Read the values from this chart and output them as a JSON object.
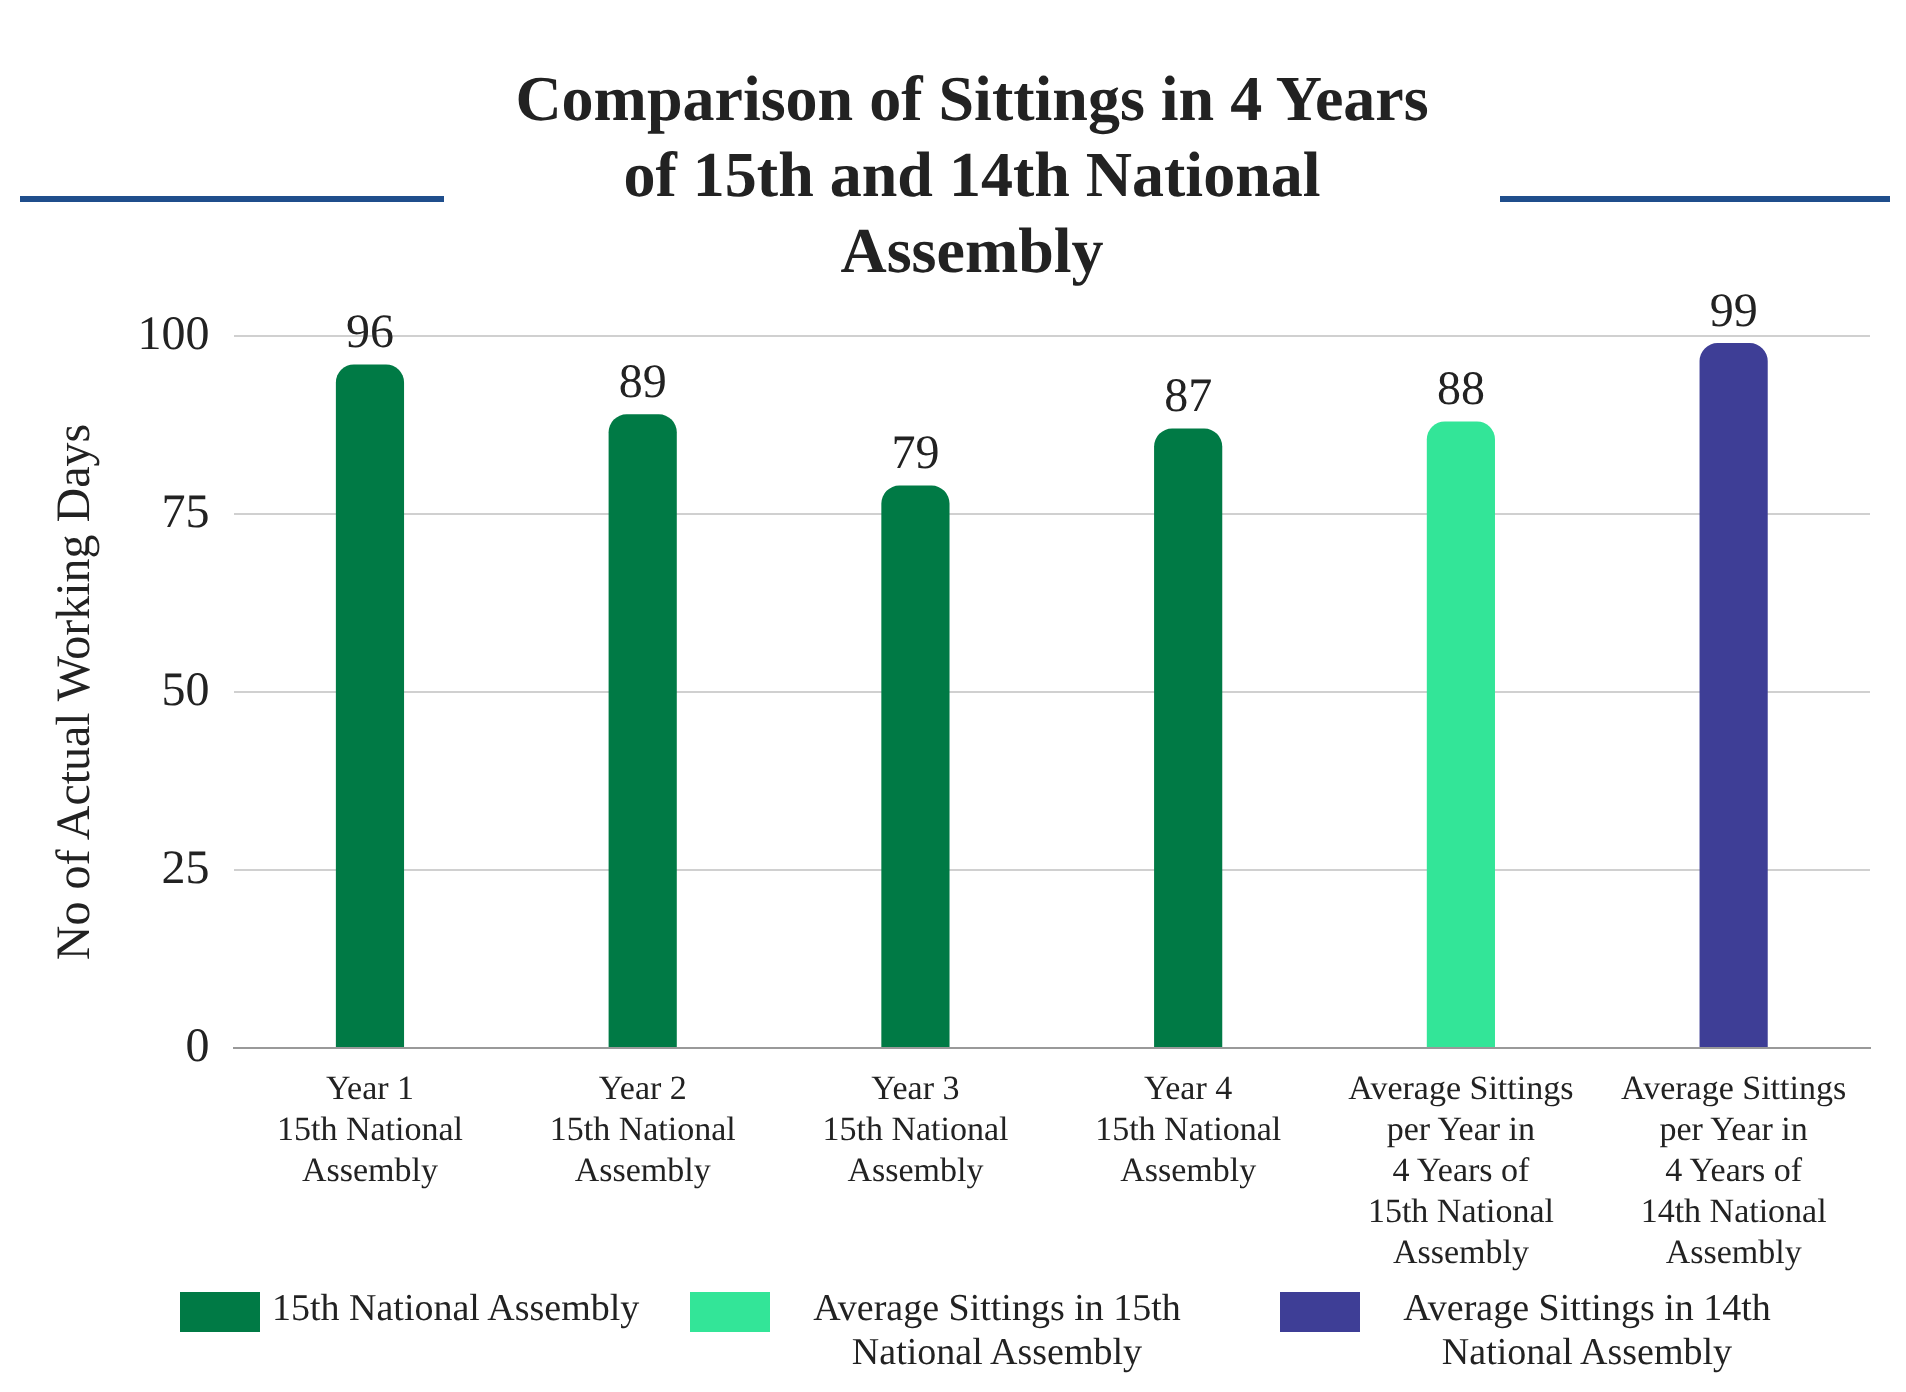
{
  "chart_data": {
    "type": "bar",
    "title": "Comparison of Sittings in 4 Years of 15th and 14th National Assembly",
    "ylabel": "No of Actual Working Days",
    "categories": [
      "Year 1 15th National Assembly",
      "Year 2 15th National Assembly",
      "Year 3 15th National Assembly",
      "Year 4 15th National Assembly",
      "Average Sittings per Year in 4 Years of 15th National Assembly",
      "Average Sittings per Year in 4 Years of 14th National Assembly"
    ],
    "series": [
      {
        "name": "15th National Assembly",
        "color": "#007a45",
        "values": [
          96,
          89,
          79,
          87,
          null,
          null
        ]
      },
      {
        "name": "Average Sittings in 15th National Assembly",
        "color": "#33e598",
        "values": [
          null,
          null,
          null,
          null,
          88,
          null
        ]
      },
      {
        "name": "Average Sittings in 14th National Assembly",
        "color": "#3e3e96",
        "values": [
          null,
          null,
          null,
          null,
          null,
          99
        ]
      }
    ],
    "ylim": [
      0,
      100
    ],
    "yticks": [
      0,
      25,
      50,
      75,
      100
    ],
    "grid": "y",
    "legend": "bottom",
    "data_labels": true
  }
}
